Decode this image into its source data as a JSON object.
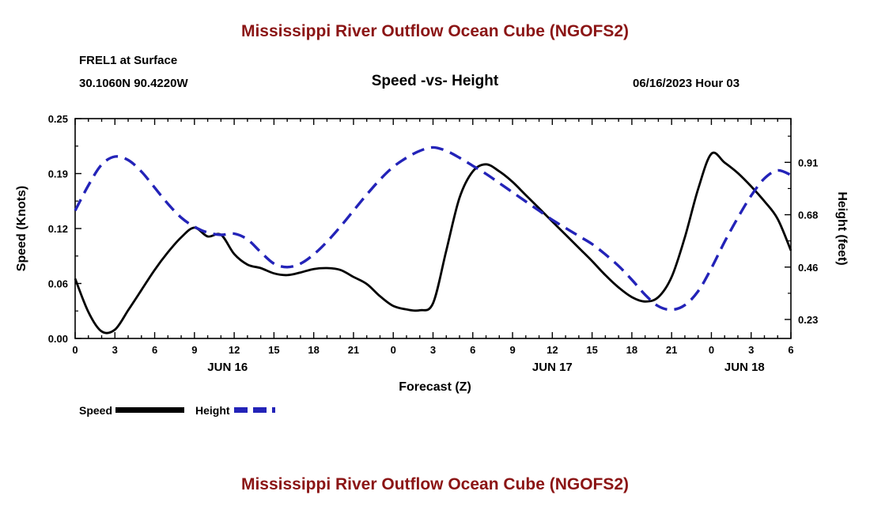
{
  "colors": {
    "title": "#8b1515",
    "speed": "#000000",
    "height": "#2323b8",
    "frame": "#000000"
  },
  "header": {
    "title": "Mississippi River Outflow Ocean Cube (NGOFS2)",
    "station": "FREL1 at Surface",
    "coordinates": "30.1060N  90.4220W",
    "subtitle": "Speed -vs- Height",
    "datetime": "06/16/2023 Hour 03"
  },
  "legend": {
    "speed_label": "Speed",
    "height_label": "Height"
  },
  "second_chart": {
    "title": "Mississippi River Outflow Ocean Cube (NGOFS2)"
  },
  "chart_data": {
    "type": "line",
    "title": "Mississippi River Outflow Ocean Cube (NGOFS2)",
    "xlabel": "Forecast (Z)",
    "ylabel_left": "Speed (Knots)",
    "ylabel_right": "Height (feet)",
    "x_start": 0,
    "x_step": 1,
    "x_max": 54,
    "x_tick_interval": 3,
    "x_tick_labels": [
      "0",
      "3",
      "6",
      "9",
      "12",
      "15",
      "18",
      "21",
      "0",
      "3",
      "6",
      "9",
      "12",
      "15",
      "18",
      "21",
      "0",
      "3",
      "6"
    ],
    "day_labels": [
      {
        "text": "JUN 16",
        "hour": 11.5
      },
      {
        "text": "JUN 17",
        "hour": 36
      },
      {
        "text": "JUN 18",
        "hour": 50.5
      }
    ],
    "left_axis": {
      "min": 0,
      "max": 0.25,
      "ticks": [
        {
          "value": 0.25,
          "label": "0.25"
        },
        {
          "value": 0.1875,
          "label": "0.19"
        },
        {
          "value": 0.125,
          "label": "0.12"
        },
        {
          "value": 0.0625,
          "label": "0.06"
        },
        {
          "value": 0,
          "label": "0.00"
        }
      ]
    },
    "right_axis": {
      "min": 0.145,
      "max": 1.1,
      "ticks": [
        {
          "value": 0.91,
          "label": "0.91"
        },
        {
          "value": 0.6825,
          "label": "0.68"
        },
        {
          "value": 0.455,
          "label": "0.46"
        },
        {
          "value": 0.2275,
          "label": "0.23"
        }
      ]
    },
    "grid": false,
    "legend_position": "bottom-left",
    "series": [
      {
        "name": "Speed",
        "axis": "left",
        "style": "solid",
        "values": [
          0.068,
          0.03,
          0.008,
          0.01,
          0.032,
          0.055,
          0.078,
          0.098,
          0.115,
          0.126,
          0.116,
          0.118,
          0.096,
          0.084,
          0.08,
          0.074,
          0.072,
          0.075,
          0.079,
          0.08,
          0.078,
          0.07,
          0.062,
          0.048,
          0.037,
          0.033,
          0.032,
          0.04,
          0.1,
          0.16,
          0.19,
          0.198,
          0.19,
          0.178,
          0.163,
          0.148,
          0.133,
          0.118,
          0.103,
          0.088,
          0.072,
          0.058,
          0.047,
          0.042,
          0.047,
          0.07,
          0.115,
          0.17,
          0.21,
          0.2,
          0.188,
          0.173,
          0.156,
          0.136,
          0.1
        ]
      },
      {
        "name": "Height",
        "axis": "right",
        "style": "dashed",
        "values": [
          0.7,
          0.81,
          0.9,
          0.935,
          0.92,
          0.87,
          0.8,
          0.73,
          0.67,
          0.63,
          0.605,
          0.595,
          0.6,
          0.575,
          0.52,
          0.47,
          0.455,
          0.47,
          0.51,
          0.565,
          0.63,
          0.7,
          0.77,
          0.835,
          0.89,
          0.93,
          0.96,
          0.975,
          0.96,
          0.93,
          0.895,
          0.86,
          0.82,
          0.78,
          0.74,
          0.7,
          0.66,
          0.625,
          0.59,
          0.555,
          0.51,
          0.46,
          0.4,
          0.335,
          0.285,
          0.27,
          0.29,
          0.35,
          0.45,
          0.565,
          0.67,
          0.765,
          0.84,
          0.875,
          0.855
        ]
      }
    ]
  }
}
